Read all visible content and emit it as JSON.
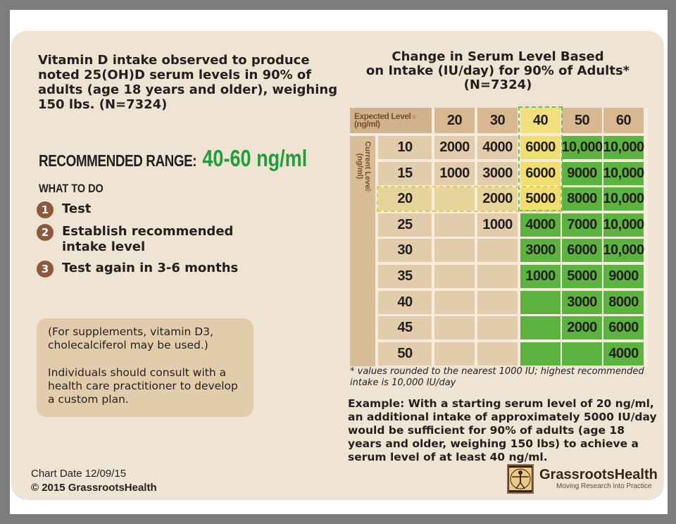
{
  "left": {
    "intro": "Vitamin D intake observed to produce noted 25(OH)D serum levels in 90% of adults (age 18 years and older), weighing 150 lbs.  (N=7324)",
    "recommended_label": "RECOMMENDED RANGE:",
    "recommended_value": "40-60 ng/ml",
    "what_to_do": "WHAT TO DO",
    "steps": [
      {
        "num": "1",
        "text": "Test"
      },
      {
        "num": "2",
        "text": "Establish recommended intake level"
      },
      {
        "num": "3",
        "text": "Test again in 3-6 months"
      }
    ],
    "note_1": "(For supplements, vitamin D3, cholecalciferol may be used.)",
    "note_2": "Individuals should consult with a health care practitioner to develop a custom plan.",
    "chart_date": "Chart Date 12/09/15",
    "copyright": "© 2015 GrassrootsHealth"
  },
  "right": {
    "title_line1": "Change in Serum Level Based",
    "title_line2": "on Intake (IU/day) for 90% of Adults*",
    "title_line3": "(N=7324)",
    "expected_label": "Expected Level",
    "expected_unit": "(ng/ml)",
    "current_label": "Current Level (ng/ml)",
    "footnote": "* values rounded to the nearest 1000 IU; highest recommended intake is 10,000 IU/day",
    "example": "Example: With a starting serum level of 20 ng/ml, an additional intake of approximately 5000 IU/day would be sufficient for 90% of adults (age 18 years and older, weighing 150 lbs) to achieve a serum level of at least 40 ng/ml.",
    "logo_brand": "GrassrootsHealth",
    "logo_tagline": "Moving Research into Practice"
  },
  "chart_data": {
    "type": "table",
    "title": "Change in Serum Level Based on Intake (IU/day) for 90% of Adults*",
    "columns": [
      "20",
      "30",
      "40",
      "50",
      "60"
    ],
    "rows": [
      {
        "current": "10",
        "values": [
          "2000",
          "4000",
          "6000",
          "10,000",
          "10,000"
        ]
      },
      {
        "current": "15",
        "values": [
          "1000",
          "3000",
          "6000",
          "9000",
          "10,000"
        ]
      },
      {
        "current": "20",
        "values": [
          "",
          "2000",
          "5000",
          "8000",
          "10,000"
        ]
      },
      {
        "current": "25",
        "values": [
          "",
          "1000",
          "4000",
          "7000",
          "10,000"
        ]
      },
      {
        "current": "30",
        "values": [
          "",
          "",
          "3000",
          "6000",
          "10,000"
        ]
      },
      {
        "current": "35",
        "values": [
          "",
          "",
          "1000",
          "5000",
          "9000"
        ]
      },
      {
        "current": "40",
        "values": [
          "",
          "",
          "",
          "3000",
          "8000"
        ]
      },
      {
        "current": "45",
        "values": [
          "",
          "",
          "",
          "2000",
          "6000"
        ]
      },
      {
        "current": "50",
        "values": [
          "",
          "",
          "",
          "",
          "4000"
        ]
      }
    ],
    "colors": {
      "tan": "#e2ccab",
      "header": "#d8b891",
      "yellow": "#f0df6e",
      "green": "#5db33f",
      "accent": "#1f9e3a"
    }
  }
}
